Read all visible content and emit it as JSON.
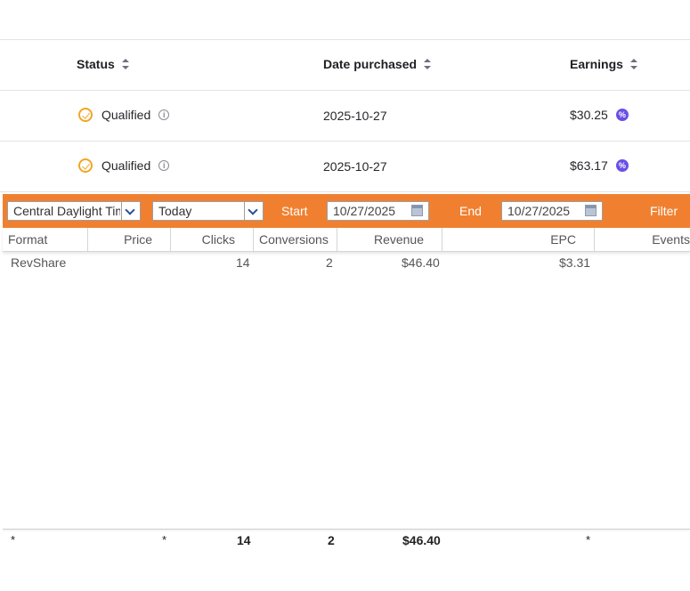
{
  "table": {
    "columns": [
      {
        "label": "Status"
      },
      {
        "label": "Date purchased"
      },
      {
        "label": "Earnings"
      }
    ],
    "rows": [
      {
        "status": "Qualified",
        "date": "2025-10-27",
        "earnings": "$30.25"
      },
      {
        "status": "Qualified",
        "date": "2025-10-27",
        "earnings": "$63.17"
      }
    ]
  },
  "filter_bar": {
    "timezone": "Central Daylight Time",
    "range": "Today",
    "start_label": "Start",
    "start_date": "10/27/2025",
    "end_label": "End",
    "end_date": "10/27/2025",
    "filter_label": "Filter",
    "accent_color": "#f08030"
  },
  "grid": {
    "headers": [
      "Format",
      "Price",
      "Clicks",
      "Conversions",
      "Revenue",
      "EPC",
      "Events"
    ],
    "row": {
      "format": "RevShare",
      "clicks": "14",
      "conversions": "2",
      "revenue": "$46.40",
      "epc": "$3.31"
    },
    "footer": {
      "format": "*",
      "price": "*",
      "clicks": "14",
      "conversions": "2",
      "revenue": "$46.40",
      "epc": "*"
    }
  },
  "colors": {
    "status_icon": "#f0a623",
    "badge": "#6b4ee6"
  },
  "icons": {
    "status": "check-circle-icon",
    "info": "info-icon",
    "badge": "discount-badge-icon",
    "calendar": "calendar-icon",
    "dropdown": "chevron-down-icon",
    "sort": "sort-icon"
  }
}
